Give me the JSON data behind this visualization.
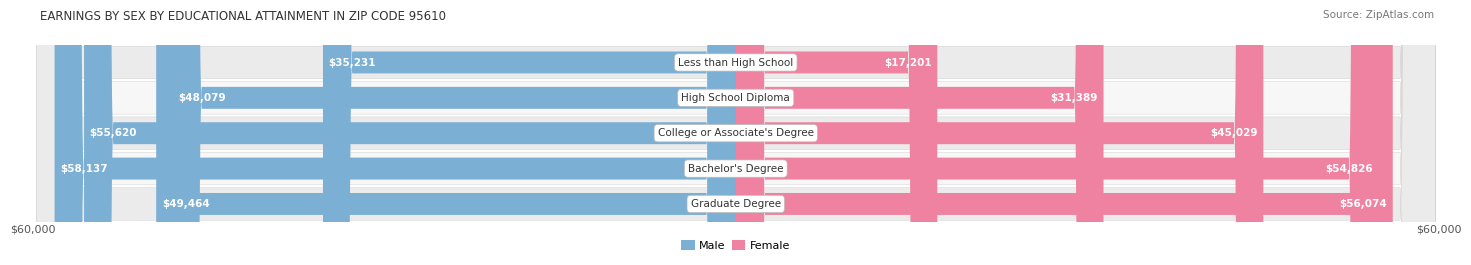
{
  "title": "EARNINGS BY SEX BY EDUCATIONAL ATTAINMENT IN ZIP CODE 95610",
  "source": "Source: ZipAtlas.com",
  "categories": [
    "Less than High School",
    "High School Diploma",
    "College or Associate's Degree",
    "Bachelor's Degree",
    "Graduate Degree"
  ],
  "male_values": [
    35231,
    48079,
    55620,
    58137,
    49464
  ],
  "female_values": [
    17201,
    31389,
    45029,
    54826,
    56074
  ],
  "max_val": 60000,
  "male_color": "#7bafd4",
  "female_color": "#ee82a0",
  "row_bg_color": "#ebebeb",
  "row_bg_color2": "#f7f7f7",
  "xlabel_left": "$60,000",
  "xlabel_right": "$60,000",
  "title_fontsize": 8.5,
  "source_fontsize": 7.5,
  "tick_fontsize": 8,
  "bar_label_fontsize": 7.5,
  "cat_label_fontsize": 7.5
}
